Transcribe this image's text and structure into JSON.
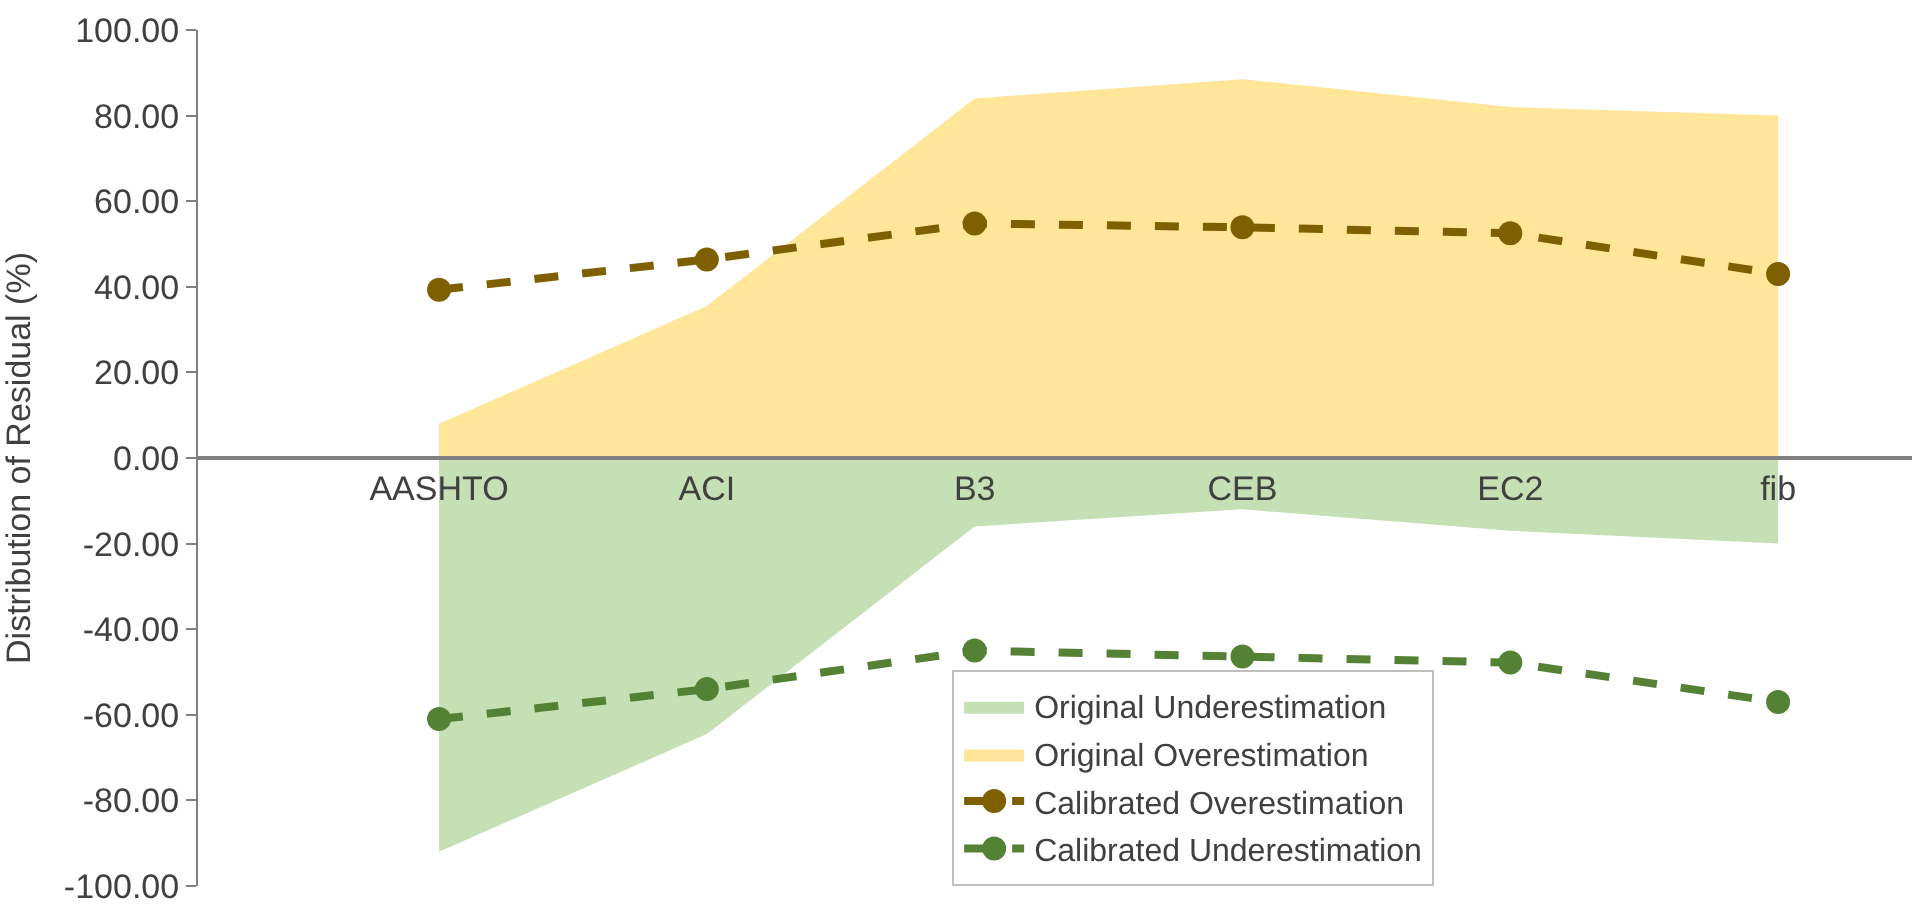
{
  "chart_data": {
    "type": "area",
    "ylabel": "Distribution of Residual (%)",
    "categories": [
      "AASHTO",
      "ACI",
      "B3",
      "CEB",
      "EC2",
      "fib"
    ],
    "ylim": [
      -100,
      100
    ],
    "yticks": [
      {
        "value": -100,
        "label": "-100.00"
      },
      {
        "value": -80,
        "label": "-80.00"
      },
      {
        "value": -60,
        "label": "-60.00"
      },
      {
        "value": -40,
        "label": "-40.00"
      },
      {
        "value": -20,
        "label": "-20.00"
      },
      {
        "value": 0,
        "label": "0.00"
      },
      {
        "value": 20,
        "label": "20.00"
      },
      {
        "value": 40,
        "label": "40.00"
      },
      {
        "value": 60,
        "label": "60.00"
      },
      {
        "value": 80,
        "label": "80.00"
      },
      {
        "value": 100,
        "label": "100.00"
      }
    ],
    "legend": "bottom",
    "series": [
      {
        "name": "Original Underestimation",
        "color": "#c5e0b4",
        "values": [
          -92,
          -64.5,
          -16,
          -12,
          -17,
          -20
        ]
      },
      {
        "name": "Original Overestimation",
        "color": "#ffe699",
        "values": [
          8,
          35.5,
          84,
          88.5,
          82,
          80
        ]
      },
      {
        "name": "Calibrated Overestimation",
        "type": "line",
        "color": "#7f6000",
        "marker": "circle",
        "line_style": "dashed",
        "values": [
          39.3,
          46.4,
          54.8,
          53.9,
          52.5,
          43
        ]
      },
      {
        "name": "Calibrated Underestimation",
        "type": "line",
        "color": "#548235",
        "marker": "circle",
        "line_style": "dashed",
        "values": [
          -61,
          -54,
          -45,
          -46.4,
          -47.8,
          -57
        ]
      }
    ]
  }
}
